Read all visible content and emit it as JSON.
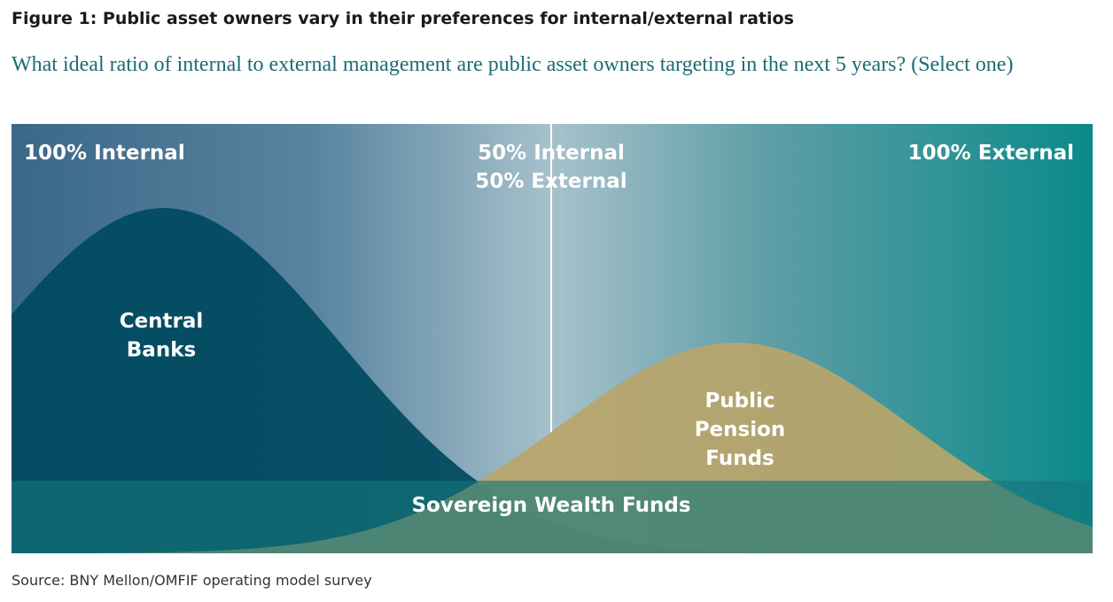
{
  "header": {
    "title": "Figure 1: Public asset owners vary in their preferences for internal/external ratios",
    "subtitle": "What ideal ratio of internal to external management are public asset owners targeting in the next 5 years? (Select one)"
  },
  "scale_labels": {
    "left": "100% Internal",
    "middle": [
      "50% Internal",
      "50% External"
    ],
    "right": "100% External"
  },
  "groups": [
    {
      "label": [
        "Central",
        "Banks"
      ]
    },
    {
      "label": [
        "Public",
        "Pension",
        "Funds"
      ]
    },
    {
      "label": [
        "Sovereign Wealth Funds"
      ]
    }
  ],
  "source": "Source: BNY Mellon/OMFIF operating model survey"
}
